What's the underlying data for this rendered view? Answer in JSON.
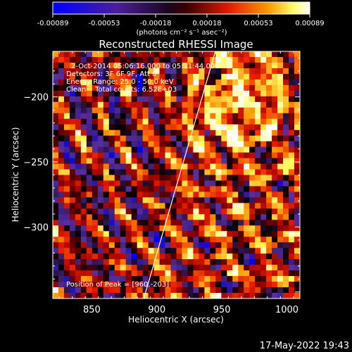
{
  "colorbar": {
    "ticks": [
      "-0.00089",
      "-0.00053",
      "-0.00018",
      "0.00018",
      "0.00053",
      "0.00089"
    ],
    "unit_label": "(photons cm⁻² s⁻¹ asec⁻²)"
  },
  "chart_data": {
    "type": "heatmap",
    "title": "Reconstructed RHESSI Image",
    "xlabel": "Heliocentric X (arcsec)",
    "ylabel": "Heliocentric Y (arcsec)",
    "xlim": [
      820,
      1010
    ],
    "ylim": [
      -355,
      -165
    ],
    "xticks": [
      850,
      900,
      950,
      1000
    ],
    "yticks": [
      -200,
      -250,
      -300
    ],
    "value_range": [
      -0.00089,
      0.00089
    ],
    "colormap": [
      "#0000ff",
      "#3a1e8c",
      "#5b2f9e",
      "#000000",
      "#8b0000",
      "#e61a00",
      "#ff8c00",
      "#ffff66",
      "#ffffff"
    ],
    "peak": [
      960,
      -203
    ],
    "limb_line": [
      [
        890,
        -355
      ],
      [
        945,
        -165
      ]
    ],
    "annotations": [
      "2-Oct-2014 05:06:16.000 to 05:11:44.000",
      "Detectors: 3F 6F 9F, Att 0",
      "Energy Range: 25.0 - 50.0 keV",
      "Clean    Total counts: 6.52E+03"
    ],
    "peak_label": "Position of Peak = [960,-203]"
  },
  "footer": {
    "timestamp": "17-May-2022 19:43"
  }
}
